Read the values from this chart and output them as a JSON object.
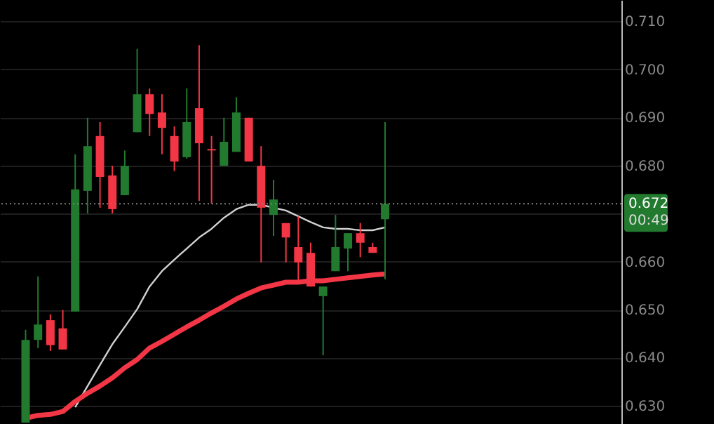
{
  "chart_data": {
    "type": "candlestick",
    "categories": [
      null,
      null,
      null,
      null,
      null,
      null,
      null,
      null,
      null,
      null,
      null,
      null,
      null,
      null,
      null,
      null,
      null,
      null,
      null,
      null,
      null,
      null,
      null,
      null,
      null,
      null,
      null,
      null,
      null,
      null,
      null,
      null,
      null,
      null,
      null,
      null,
      null,
      null,
      null,
      null,
      null,
      null,
      null,
      null,
      null,
      null,
      null,
      null,
      null
    ],
    "ohlc": [
      null,
      [
        0.6265,
        0.6458,
        0.6265,
        0.6437
      ],
      [
        0.6437,
        0.6569,
        0.642,
        0.6469
      ],
      [
        0.6478,
        0.649,
        0.6414,
        0.6426
      ],
      [
        0.6461,
        0.6499,
        0.6417,
        0.6417
      ],
      [
        0.6496,
        0.6823,
        0.6496,
        0.675
      ],
      [
        0.6747,
        0.6899,
        0.67,
        0.684
      ],
      [
        0.6861,
        0.689,
        0.6712,
        0.6776
      ],
      [
        0.6779,
        0.6799,
        0.67,
        0.6709
      ],
      [
        0.6738,
        0.6831,
        0.6738,
        0.6799
      ],
      [
        0.6869,
        0.7042,
        0.6869,
        0.6948
      ],
      [
        0.6948,
        0.696,
        0.6861,
        0.6907
      ],
      [
        0.691,
        0.6948,
        0.6823,
        0.6878
      ],
      [
        0.6861,
        0.6881,
        0.6788,
        0.6808
      ],
      [
        0.6817,
        0.696,
        0.6814,
        0.689
      ],
      [
        0.6919,
        0.705,
        0.6726,
        0.6846
      ],
      [
        0.6834,
        0.6861,
        0.672,
        0.6831
      ],
      [
        0.6799,
        0.6899,
        0.6799,
        0.6849
      ],
      [
        0.6828,
        0.6942,
        0.6828,
        0.691
      ],
      [
        0.6899,
        0.6899,
        0.6808,
        0.6808
      ],
      [
        0.6799,
        0.684,
        0.6598,
        0.6712
      ],
      [
        0.6697,
        0.677,
        0.6653,
        0.6729
      ],
      [
        0.668,
        0.668,
        0.6598,
        0.665
      ],
      [
        0.663,
        0.6694,
        0.6554,
        0.6598
      ],
      [
        0.6618,
        0.6639,
        0.6548,
        0.6548
      ],
      [
        0.6528,
        0.6548,
        0.6405,
        0.6548
      ],
      [
        0.658,
        0.6697,
        0.658,
        0.663
      ],
      [
        0.6627,
        0.6659,
        0.658,
        0.6659
      ],
      [
        0.6659,
        0.668,
        0.6609,
        0.6639
      ],
      [
        0.663,
        0.6639,
        0.6618,
        0.6618
      ],
      [
        0.6688,
        0.689,
        0.6563,
        0.672
      ],
      null,
      null,
      null,
      null,
      null,
      null,
      null,
      null,
      null,
      null,
      null,
      null,
      null,
      null,
      null,
      null,
      null,
      null
    ],
    "colors": [
      null,
      "#217a2e",
      "#217a2e",
      "#f23645",
      "#f23645",
      "#217a2e",
      "#217a2e",
      "#f23645",
      "#f23645",
      "#217a2e",
      "#217a2e",
      "#f23645",
      "#f23645",
      "#f23645",
      "#217a2e",
      "#f23645",
      "#f23645",
      "#217a2e",
      "#217a2e",
      "#f23645",
      "#f23645",
      "#217a2e",
      "#f23645",
      "#f23645",
      "#f23645",
      "#217a2e",
      "#217a2e",
      "#217a2e",
      "#f23645",
      "#f23645",
      "#217a2e",
      null,
      null,
      null,
      null,
      null,
      null,
      null,
      null,
      null,
      null,
      null,
      null,
      null,
      null,
      null,
      null,
      null,
      null
    ],
    "series": [
      {
        "type": "line",
        "color": "#d0d0d0",
        "values": [
          null,
          null,
          null,
          null,
          null,
          0.6297,
          0.6341,
          0.6385,
          0.6428,
          0.6464,
          0.6501,
          0.6548,
          0.658,
          0.6604,
          0.6627,
          0.665,
          0.6668,
          0.6691,
          0.6709,
          0.6718,
          0.6718,
          0.6712,
          0.6706,
          0.6694,
          0.6682,
          0.6671,
          0.6668,
          0.6668,
          0.6665,
          0.6665,
          0.6671,
          null,
          null,
          null,
          null,
          null,
          null,
          null,
          null,
          null,
          null,
          null,
          null,
          null,
          null,
          null,
          null,
          null,
          null
        ]
      },
      {
        "type": "line",
        "color": "#f23645",
        "values": [
          null,
          0.6274,
          0.628,
          0.6282,
          0.6288,
          0.6309,
          0.6326,
          0.6341,
          0.6358,
          0.6379,
          0.6396,
          0.642,
          0.6434,
          0.6449,
          0.6464,
          0.6478,
          0.6493,
          0.6507,
          0.6522,
          0.6534,
          0.6545,
          0.6551,
          0.6557,
          0.6557,
          0.656,
          0.656,
          0.6563,
          0.6566,
          0.6569,
          0.6572,
          0.6574,
          null,
          null,
          null,
          null,
          null,
          null,
          null,
          null,
          null,
          null,
          null,
          null,
          null,
          null,
          null,
          null,
          null,
          null
        ]
      }
    ],
    "ylim": [
      0.6262,
      0.7144
    ],
    "yticks": [
      {
        "value": 0.63,
        "label": "0.630"
      },
      {
        "value": 0.64,
        "label": "0.640"
      },
      {
        "value": 0.65,
        "label": "0.650"
      },
      {
        "value": 0.66,
        "label": "0.660"
      },
      {
        "value": 0.67,
        "label": null
      },
      {
        "value": 0.68,
        "label": "0.680"
      },
      {
        "value": 0.69,
        "label": "0.690"
      },
      {
        "value": 0.7,
        "label": "0.700"
      },
      {
        "value": 0.71,
        "label": "0.710"
      }
    ],
    "ref_lines": [
      {
        "axis": "y",
        "value": 0.672,
        "label": "0.672",
        "line_style": "dotted",
        "color": "#808080"
      }
    ],
    "annotations": [
      "00:49"
    ],
    "grid": "y"
  }
}
